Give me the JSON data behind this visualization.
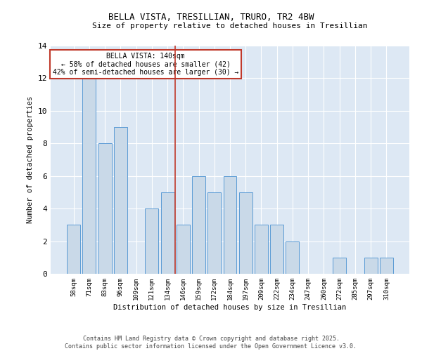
{
  "title": "BELLA VISTA, TRESILLIAN, TRURO, TR2 4BW",
  "subtitle": "Size of property relative to detached houses in Tresillian",
  "xlabel": "Distribution of detached houses by size in Tresillian",
  "ylabel": "Number of detached properties",
  "categories": [
    "58sqm",
    "71sqm",
    "83sqm",
    "96sqm",
    "109sqm",
    "121sqm",
    "134sqm",
    "146sqm",
    "159sqm",
    "172sqm",
    "184sqm",
    "197sqm",
    "209sqm",
    "222sqm",
    "234sqm",
    "247sqm",
    "260sqm",
    "272sqm",
    "285sqm",
    "297sqm",
    "310sqm"
  ],
  "values": [
    3,
    12,
    8,
    9,
    0,
    4,
    5,
    3,
    6,
    5,
    6,
    5,
    3,
    3,
    2,
    0,
    0,
    1,
    0,
    1,
    1
  ],
  "bar_color": "#c9d9e8",
  "bar_edge_color": "#5b9bd5",
  "vline_color": "#c0392b",
  "annotation_title": "BELLA VISTA: 140sqm",
  "annotation_line1": "← 58% of detached houses are smaller (42)",
  "annotation_line2": "42% of semi-detached houses are larger (30) →",
  "annotation_box_color": "#c0392b",
  "ylim": [
    0,
    14
  ],
  "yticks": [
    0,
    2,
    4,
    6,
    8,
    10,
    12,
    14
  ],
  "bg_color": "#dde8f4",
  "footer1": "Contains HM Land Registry data © Crown copyright and database right 2025.",
  "footer2": "Contains public sector information licensed under the Open Government Licence v3.0."
}
